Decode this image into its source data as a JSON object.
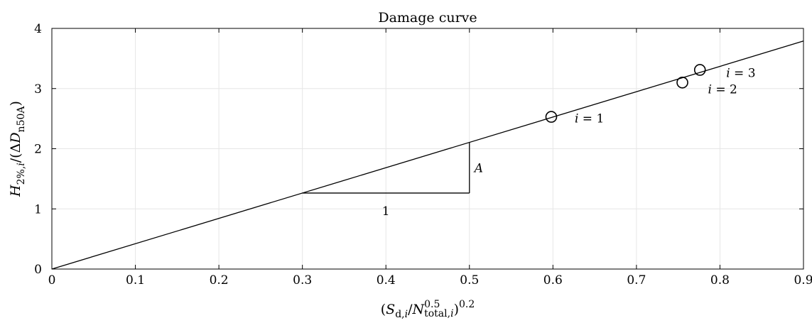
{
  "chart_data": {
    "type": "line",
    "title": "Damage curve",
    "xlabel": "(S_d,i/N^0.5_total,i)^0.2",
    "xlabel_parts": {
      "open": "(",
      "S": "S",
      "S_sub": "d,",
      "S_sub_i": "i",
      "slash": "/",
      "N": "N",
      "N_sup": "0.5",
      "N_sub": "total,",
      "N_sub_i": "i",
      "close": ")",
      "power": "0.2"
    },
    "ylabel": "H_2%,i/(ΔD_n50A)",
    "ylabel_parts": {
      "H": "H",
      "H_sub": "2%,",
      "H_sub_i": "i",
      "mid": "/(Δ",
      "D": "D",
      "D_sub": "n50A",
      "close": ")"
    },
    "xlim": [
      0,
      0.9
    ],
    "ylim": [
      0,
      4
    ],
    "xticks": [
      0,
      0.1,
      0.2,
      0.3,
      0.4,
      0.5,
      0.6,
      0.7,
      0.8,
      0.9
    ],
    "xtick_labels": [
      "0",
      "0.1",
      "0.2",
      "0.3",
      "0.4",
      "0.5",
      "0.6",
      "0.7",
      "0.8",
      "0.9"
    ],
    "yticks": [
      0,
      1,
      2,
      3,
      4
    ],
    "ytick_labels": [
      "0",
      "1",
      "2",
      "3",
      "4"
    ],
    "grid": true,
    "line": {
      "x": [
        0,
        0.9
      ],
      "y": [
        0,
        3.79
      ],
      "slope": 4.21
    },
    "points": [
      {
        "x": 0.598,
        "y": 2.53,
        "label_i": "i",
        "label_rest": " = 1"
      },
      {
        "x": 0.755,
        "y": 3.1,
        "label_i": "i",
        "label_rest": " = 2"
      },
      {
        "x": 0.776,
        "y": 3.31,
        "label_i": "i",
        "label_rest": " = 3"
      }
    ],
    "slope_triangle": {
      "x0": 0.3,
      "x1": 0.5,
      "run_label": "1",
      "rise_label": "A"
    }
  }
}
